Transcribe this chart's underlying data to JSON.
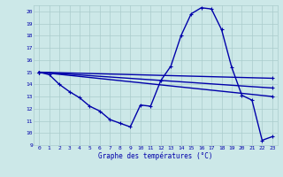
{
  "xlabel": "Graphe des températures (°C)",
  "background_color": "#cce8e8",
  "grid_color": "#aacccc",
  "line_color": "#0000aa",
  "xlim": [
    -0.5,
    23.5
  ],
  "ylim": [
    9,
    20.5
  ],
  "yticks": [
    9,
    10,
    11,
    12,
    13,
    14,
    15,
    16,
    17,
    18,
    19,
    20
  ],
  "xticks": [
    0,
    1,
    2,
    3,
    4,
    5,
    6,
    7,
    8,
    9,
    10,
    11,
    12,
    13,
    14,
    15,
    16,
    17,
    18,
    19,
    20,
    21,
    22,
    23
  ],
  "main_x": [
    0,
    1,
    2,
    3,
    4,
    5,
    6,
    7,
    8,
    9,
    10,
    11,
    12,
    13,
    14,
    15,
    16,
    17,
    18,
    19,
    20,
    21,
    22,
    23
  ],
  "main_y": [
    15.0,
    14.8,
    14.0,
    13.4,
    12.9,
    12.2,
    11.8,
    11.1,
    10.8,
    10.5,
    12.3,
    12.2,
    14.3,
    15.5,
    18.0,
    19.8,
    20.3,
    20.2,
    18.5,
    15.4,
    13.1,
    12.7,
    9.4,
    9.7
  ],
  "line2_x": [
    0,
    23
  ],
  "line2_y": [
    15.0,
    14.5
  ],
  "line3_x": [
    0,
    23
  ],
  "line3_y": [
    15.0,
    13.7
  ],
  "line4_x": [
    0,
    23
  ],
  "line4_y": [
    15.0,
    13.0
  ],
  "xlabel_fontsize": 5.5,
  "tick_fontsize": 4.5,
  "linewidth": 1.0,
  "markersize": 3.0
}
